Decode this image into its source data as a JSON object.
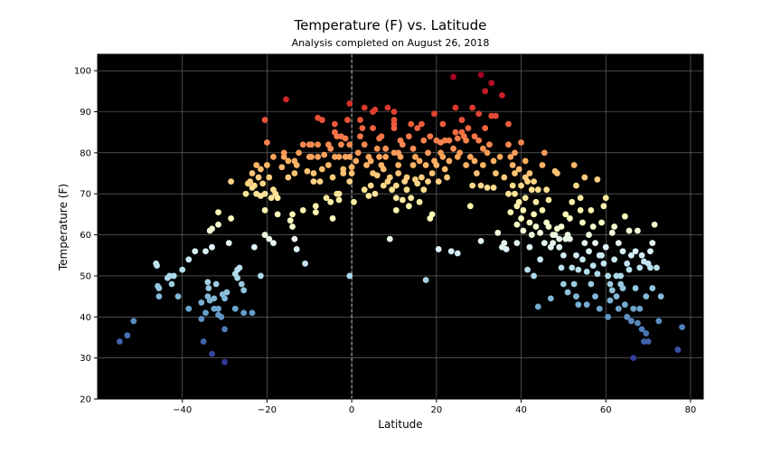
{
  "chart_data": {
    "type": "scatter",
    "title": "Temperature (F) vs. Latitude",
    "subtitle": "Analysis completed on August 26, 2018",
    "xlabel": "Latitude",
    "ylabel": "Temperature (F)",
    "xlim": [
      -60,
      83
    ],
    "ylim": [
      20,
      104
    ],
    "xticks": [
      -40,
      -20,
      0,
      20,
      40,
      60,
      80
    ],
    "yticks": [
      20,
      30,
      40,
      50,
      60,
      70,
      80,
      90,
      100
    ],
    "grid": true,
    "background": "#000000",
    "colormap": "RdYlBu_r",
    "color_range": [
      29,
      99
    ],
    "reference_line": {
      "x": 0,
      "style": "dashed",
      "color": "#ffffff"
    },
    "points": [
      [
        -54.8,
        34
      ],
      [
        -53,
        35.5
      ],
      [
        -51.5,
        39
      ],
      [
        -46.2,
        53
      ],
      [
        -46,
        52.5
      ],
      [
        -45.8,
        47.5
      ],
      [
        -45.5,
        47
      ],
      [
        -45.5,
        45
      ],
      [
        -43.5,
        49.5
      ],
      [
        -43,
        50
      ],
      [
        -42.5,
        48
      ],
      [
        -42,
        50
      ],
      [
        -41,
        45
      ],
      [
        -40,
        51.5
      ],
      [
        -38.5,
        54
      ],
      [
        -38.5,
        42
      ],
      [
        -37,
        56
      ],
      [
        -35.5,
        43.5
      ],
      [
        -35.5,
        39.5
      ],
      [
        -35,
        34
      ],
      [
        -34.5,
        41
      ],
      [
        -34.5,
        56
      ],
      [
        -34,
        45
      ],
      [
        -34,
        48.5
      ],
      [
        -33.8,
        47
      ],
      [
        -33.5,
        61
      ],
      [
        -33.5,
        44
      ],
      [
        -33,
        31
      ],
      [
        -33,
        61.5
      ],
      [
        -33,
        57
      ],
      [
        -32.5,
        44.5
      ],
      [
        -32.5,
        42
      ],
      [
        -32,
        48
      ],
      [
        -31.5,
        40.5
      ],
      [
        -31.5,
        62.5
      ],
      [
        -31.5,
        65.5
      ],
      [
        -31.5,
        42
      ],
      [
        -30.8,
        40
      ],
      [
        -30.5,
        45.5
      ],
      [
        -30,
        29
      ],
      [
        -30,
        44.5
      ],
      [
        -30,
        37
      ],
      [
        -29.5,
        46
      ],
      [
        -29,
        58
      ],
      [
        -28.5,
        64
      ],
      [
        -28.5,
        73
      ],
      [
        -27.5,
        50.5
      ],
      [
        -27.5,
        42
      ],
      [
        -27,
        51.5
      ],
      [
        -27,
        49.5
      ],
      [
        -26.5,
        52
      ],
      [
        -26,
        48
      ],
      [
        -25.5,
        41
      ],
      [
        -25.5,
        46.5
      ],
      [
        -25,
        70
      ],
      [
        -24.5,
        72.5
      ],
      [
        -24,
        73
      ],
      [
        -23.5,
        75
      ],
      [
        -23.5,
        71.5
      ],
      [
        -23.5,
        41
      ],
      [
        -23,
        57
      ],
      [
        -23,
        72
      ],
      [
        -22.5,
        77
      ],
      [
        -22.5,
        70
      ],
      [
        -22,
        74
      ],
      [
        -21.5,
        76
      ],
      [
        -21.5,
        50
      ],
      [
        -21.5,
        69.5
      ],
      [
        -21,
        72.5
      ],
      [
        -20.5,
        66
      ],
      [
        -20.5,
        88
      ],
      [
        -20.5,
        60
      ],
      [
        -20.5,
        70
      ],
      [
        -20,
        82.5
      ],
      [
        -20,
        77
      ],
      [
        -19.5,
        59
      ],
      [
        -19.5,
        74
      ],
      [
        -19,
        69
      ],
      [
        -18.5,
        79
      ],
      [
        -18.5,
        58
      ],
      [
        -18.5,
        71
      ],
      [
        -18,
        70
      ],
      [
        -17.5,
        69
      ],
      [
        -17.5,
        65
      ],
      [
        -16.5,
        76.5
      ],
      [
        -16,
        79
      ],
      [
        -16,
        80
      ],
      [
        -15.5,
        93
      ],
      [
        -15,
        78
      ],
      [
        -15,
        74
      ],
      [
        -14.5,
        63.5
      ],
      [
        -14,
        62
      ],
      [
        -14,
        65
      ],
      [
        -13.5,
        75
      ],
      [
        -13.5,
        78
      ],
      [
        -13.5,
        59
      ],
      [
        -13,
        56.5
      ],
      [
        -13,
        77
      ],
      [
        -12.5,
        80
      ],
      [
        -11.5,
        66
      ],
      [
        -11.5,
        82
      ],
      [
        -11,
        53
      ],
      [
        -10.5,
        75.5
      ],
      [
        -10,
        79
      ],
      [
        -10,
        82
      ],
      [
        -9.5,
        82
      ],
      [
        -9.5,
        79
      ],
      [
        -9,
        75
      ],
      [
        -9,
        73
      ],
      [
        -8.5,
        67
      ],
      [
        -8.5,
        65.5
      ],
      [
        -8,
        79
      ],
      [
        -8,
        82
      ],
      [
        -8,
        88.5
      ],
      [
        -7.5,
        73
      ],
      [
        -7,
        88
      ],
      [
        -7,
        76
      ],
      [
        -6.5,
        79.5
      ],
      [
        -6,
        69
      ],
      [
        -5.5,
        82
      ],
      [
        -5.5,
        77
      ],
      [
        -5,
        68
      ],
      [
        -5,
        81
      ],
      [
        -4.5,
        64
      ],
      [
        -4.5,
        74
      ],
      [
        -4,
        87
      ],
      [
        -4,
        79
      ],
      [
        -4,
        85
      ],
      [
        -3.5,
        70
      ],
      [
        -3.5,
        84
      ],
      [
        -3,
        70
      ],
      [
        -3,
        68.5
      ],
      [
        -3,
        79
      ],
      [
        -2.5,
        82
      ],
      [
        -2.5,
        84
      ],
      [
        -2,
        76
      ],
      [
        -2,
        75
      ],
      [
        -1.5,
        79
      ],
      [
        -1.5,
        83.5
      ],
      [
        -1,
        88
      ],
      [
        -0.5,
        92
      ],
      [
        -0.5,
        82
      ],
      [
        -0.5,
        79
      ],
      [
        -0.5,
        50
      ],
      [
        -0.5,
        73
      ],
      [
        0,
        76.5
      ],
      [
        0,
        75
      ],
      [
        0.5,
        68
      ],
      [
        1,
        78
      ],
      [
        1.5,
        80
      ],
      [
        2,
        88
      ],
      [
        2,
        84
      ],
      [
        2.5,
        86
      ],
      [
        3,
        71
      ],
      [
        3,
        82
      ],
      [
        3,
        91
      ],
      [
        3.5,
        77
      ],
      [
        4,
        69.5
      ],
      [
        4,
        79
      ],
      [
        4.5,
        72
      ],
      [
        4.5,
        78
      ],
      [
        5,
        75
      ],
      [
        5,
        86
      ],
      [
        5,
        90
      ],
      [
        5.5,
        90.5
      ],
      [
        5.5,
        70
      ],
      [
        6,
        81
      ],
      [
        6,
        74.5
      ],
      [
        6.5,
        79
      ],
      [
        6.5,
        83.5
      ],
      [
        7,
        77
      ],
      [
        7,
        84
      ],
      [
        7.5,
        72
      ],
      [
        7.5,
        76
      ],
      [
        8,
        79
      ],
      [
        8,
        81
      ],
      [
        8.5,
        73
      ],
      [
        8.5,
        91
      ],
      [
        9,
        59
      ],
      [
        9,
        74
      ],
      [
        9.5,
        71
      ],
      [
        10,
        80
      ],
      [
        10,
        86
      ],
      [
        10,
        87
      ],
      [
        10,
        88
      ],
      [
        10,
        90
      ],
      [
        10.5,
        69
      ],
      [
        10.5,
        66
      ],
      [
        10.5,
        72
      ],
      [
        11,
        75
      ],
      [
        11,
        80
      ],
      [
        11,
        77
      ],
      [
        11.5,
        79
      ],
      [
        11.5,
        83
      ],
      [
        12,
        82
      ],
      [
        12,
        68.5
      ],
      [
        12.5,
        73
      ],
      [
        13,
        71
      ],
      [
        13,
        74
      ],
      [
        13.5,
        84
      ],
      [
        13.5,
        67
      ],
      [
        14,
        69
      ],
      [
        14,
        87
      ],
      [
        14.5,
        81
      ],
      [
        14.5,
        77
      ],
      [
        15,
        79
      ],
      [
        15,
        73.5
      ],
      [
        15.5,
        86
      ],
      [
        15.5,
        72.5
      ],
      [
        16,
        68
      ],
      [
        16,
        78
      ],
      [
        16.5,
        74
      ],
      [
        16.5,
        87
      ],
      [
        17,
        71
      ],
      [
        17,
        83
      ],
      [
        17.5,
        49
      ],
      [
        17.5,
        77
      ],
      [
        18,
        80
      ],
      [
        18,
        73
      ],
      [
        18.5,
        64
      ],
      [
        18.5,
        84
      ],
      [
        19,
        65
      ],
      [
        19,
        75
      ],
      [
        19.5,
        78
      ],
      [
        19.5,
        89.5
      ],
      [
        20,
        77
      ],
      [
        20,
        83
      ],
      [
        20.5,
        73
      ],
      [
        20.5,
        56.5
      ],
      [
        21,
        80
      ],
      [
        21,
        82.5
      ],
      [
        21.5,
        79
      ],
      [
        21.5,
        87
      ],
      [
        22,
        83
      ],
      [
        22,
        76
      ],
      [
        22.5,
        74
      ],
      [
        23,
        83
      ],
      [
        23,
        78
      ],
      [
        23.5,
        56
      ],
      [
        24,
        81
      ],
      [
        24,
        98.5
      ],
      [
        24.5,
        85
      ],
      [
        24.5,
        91
      ],
      [
        25,
        55.5
      ],
      [
        25,
        83.5
      ],
      [
        25,
        79
      ],
      [
        25.5,
        80
      ],
      [
        26,
        85
      ],
      [
        26,
        88
      ],
      [
        26.5,
        84
      ],
      [
        27,
        77
      ],
      [
        27,
        83
      ],
      [
        27.5,
        86
      ],
      [
        28,
        67
      ],
      [
        28,
        79
      ],
      [
        28.5,
        72
      ],
      [
        28.5,
        91
      ],
      [
        29,
        84
      ],
      [
        29,
        78
      ],
      [
        29.5,
        75
      ],
      [
        30,
        89.5
      ],
      [
        30,
        83
      ],
      [
        30.5,
        99
      ],
      [
        30.5,
        72
      ],
      [
        30.5,
        58.5
      ],
      [
        31,
        77
      ],
      [
        31,
        81
      ],
      [
        31.5,
        95
      ],
      [
        31.5,
        86
      ],
      [
        32,
        71.5
      ],
      [
        32,
        80
      ],
      [
        32.5,
        82
      ],
      [
        33,
        89
      ],
      [
        33,
        97
      ],
      [
        33.5,
        71.5
      ],
      [
        33.5,
        78
      ],
      [
        34,
        89
      ],
      [
        34,
        75
      ],
      [
        34.5,
        60.5
      ],
      [
        35,
        79
      ],
      [
        35.5,
        94
      ],
      [
        35.5,
        57
      ],
      [
        36,
        58
      ],
      [
        36,
        74
      ],
      [
        36.5,
        56.5
      ],
      [
        37,
        82
      ],
      [
        37,
        70
      ],
      [
        37,
        87
      ],
      [
        37.5,
        65.5
      ],
      [
        37.5,
        79
      ],
      [
        38,
        72
      ],
      [
        38,
        77
      ],
      [
        38.5,
        70
      ],
      [
        38.5,
        80
      ],
      [
        38.5,
        75
      ],
      [
        39,
        58
      ],
      [
        39,
        62.5
      ],
      [
        39,
        67
      ],
      [
        39.5,
        68
      ],
      [
        39.5,
        76
      ],
      [
        40,
        82.5
      ],
      [
        40,
        64
      ],
      [
        40,
        72
      ],
      [
        40.5,
        61
      ],
      [
        40.5,
        66
      ],
      [
        41,
        74
      ],
      [
        41,
        78
      ],
      [
        41,
        69
      ],
      [
        41.5,
        73
      ],
      [
        41.5,
        51.5
      ],
      [
        42,
        57
      ],
      [
        42,
        63
      ],
      [
        42,
        75
      ],
      [
        42.5,
        71
      ],
      [
        42.5,
        60
      ],
      [
        43,
        65
      ],
      [
        43,
        50
      ],
      [
        43,
        73
      ],
      [
        43.5,
        68
      ],
      [
        43.5,
        62
      ],
      [
        44,
        42.5
      ],
      [
        44,
        71
      ],
      [
        44.5,
        54
      ],
      [
        44.5,
        60.5
      ],
      [
        45,
        66
      ],
      [
        45,
        77
      ],
      [
        45.5,
        80
      ],
      [
        45.5,
        58
      ],
      [
        46,
        63
      ],
      [
        46,
        71
      ],
      [
        46.5,
        62
      ],
      [
        46.5,
        68.5
      ],
      [
        47,
        57
      ],
      [
        47,
        44.5
      ],
      [
        47.5,
        58
      ],
      [
        47.5,
        60
      ],
      [
        48,
        75.5
      ],
      [
        48,
        60
      ],
      [
        48.5,
        75
      ],
      [
        48.5,
        61.5
      ],
      [
        49,
        59
      ],
      [
        49,
        57
      ],
      [
        49.5,
        62
      ],
      [
        49.5,
        52
      ],
      [
        50,
        48
      ],
      [
        50,
        55
      ],
      [
        50.5,
        59
      ],
      [
        50.5,
        65
      ],
      [
        51,
        60
      ],
      [
        51,
        46
      ],
      [
        51.5,
        64
      ],
      [
        51.5,
        59
      ],
      [
        52,
        68
      ],
      [
        52,
        52
      ],
      [
        52.5,
        48
      ],
      [
        52.5,
        77
      ],
      [
        53,
        45
      ],
      [
        53,
        55
      ],
      [
        53,
        72
      ],
      [
        53.5,
        43
      ],
      [
        53.5,
        51.5
      ],
      [
        54,
        69
      ],
      [
        54,
        66
      ],
      [
        54.5,
        63
      ],
      [
        54.5,
        54
      ],
      [
        55,
        74
      ],
      [
        55,
        58
      ],
      [
        55.5,
        51
      ],
      [
        55.5,
        43
      ],
      [
        56,
        60
      ],
      [
        56,
        56
      ],
      [
        56.5,
        66
      ],
      [
        56.5,
        48
      ],
      [
        57,
        52.5
      ],
      [
        57,
        62
      ],
      [
        57.5,
        58
      ],
      [
        57.5,
        45
      ],
      [
        58,
        73.5
      ],
      [
        58,
        50.5
      ],
      [
        58.5,
        55
      ],
      [
        58.5,
        42
      ],
      [
        59,
        63
      ],
      [
        59,
        55
      ],
      [
        59.5,
        67
      ],
      [
        59.5,
        53
      ],
      [
        60,
        57
      ],
      [
        60,
        69
      ],
      [
        60.5,
        40
      ],
      [
        60.5,
        50
      ],
      [
        61,
        44
      ],
      [
        61,
        48
      ],
      [
        61.5,
        60.5
      ],
      [
        61.5,
        46.5
      ],
      [
        62,
        54
      ],
      [
        62,
        62
      ],
      [
        62.5,
        50
      ],
      [
        62.5,
        45
      ],
      [
        63,
        42
      ],
      [
        63,
        58
      ],
      [
        63.5,
        50
      ],
      [
        63.5,
        48
      ],
      [
        64,
        56
      ],
      [
        64,
        47
      ],
      [
        64.5,
        64.5
      ],
      [
        64.5,
        43
      ],
      [
        65,
        53
      ],
      [
        65,
        40
      ],
      [
        65.5,
        61
      ],
      [
        65.5,
        51.5
      ],
      [
        66,
        55
      ],
      [
        66,
        39
      ],
      [
        66.5,
        30
      ],
      [
        66.5,
        42
      ],
      [
        67,
        56
      ],
      [
        67,
        47
      ],
      [
        67.5,
        61
      ],
      [
        67.5,
        38.5
      ],
      [
        68,
        52
      ],
      [
        68,
        42
      ],
      [
        68.5,
        37
      ],
      [
        68.5,
        55
      ],
      [
        69,
        34
      ],
      [
        69,
        53.5
      ],
      [
        69.5,
        45
      ],
      [
        69.5,
        36
      ],
      [
        70,
        53
      ],
      [
        70,
        34
      ],
      [
        70.5,
        56
      ],
      [
        70.5,
        52
      ],
      [
        71,
        58
      ],
      [
        71,
        47
      ],
      [
        71.5,
        62.5
      ],
      [
        72,
        52
      ],
      [
        72.5,
        39
      ],
      [
        73,
        45
      ],
      [
        77,
        32
      ],
      [
        78,
        37.5
      ]
    ]
  }
}
